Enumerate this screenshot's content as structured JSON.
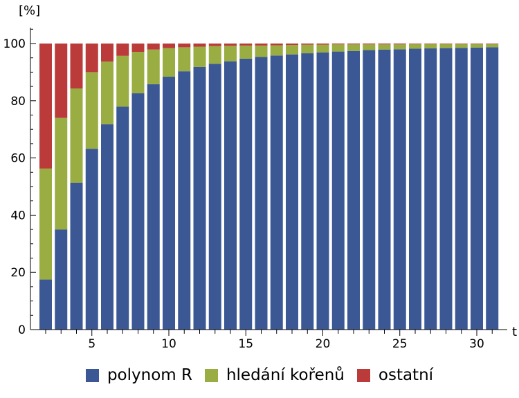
{
  "chart_data": {
    "type": "bar",
    "stacked": true,
    "ylabel": "[%]",
    "xlabel": "t",
    "ylim": [
      0,
      100
    ],
    "yticks": [
      0,
      20,
      40,
      60,
      80,
      100
    ],
    "xticks": [
      5,
      10,
      15,
      20,
      25,
      30
    ],
    "categories": [
      2,
      3,
      4,
      5,
      6,
      7,
      8,
      9,
      10,
      11,
      12,
      13,
      14,
      15,
      16,
      17,
      18,
      19,
      20,
      21,
      22,
      23,
      24,
      25,
      26,
      27,
      28,
      29,
      30,
      31
    ],
    "series": [
      {
        "name": "polynom R",
        "color": "#3b5895",
        "values": [
          17.5,
          35,
          51.3,
          63.2,
          71.8,
          77.9,
          82.6,
          85.8,
          88.4,
          90.3,
          91.8,
          92.9,
          93.8,
          94.7,
          95.3,
          95.8,
          96.2,
          96.6,
          96.9,
          97.2,
          97.4,
          97.7,
          97.9,
          98.0,
          98.2,
          98.3,
          98.4,
          98.5,
          98.6,
          98.7
        ]
      },
      {
        "name": "hledání kořenů",
        "color": "#9aad43",
        "values": [
          38.8,
          39.0,
          33.0,
          26.8,
          21.9,
          17.8,
          14.5,
          12.1,
          10.0,
          8.4,
          7.1,
          6.2,
          5.4,
          4.6,
          4.0,
          3.6,
          3.3,
          3.0,
          2.7,
          2.5,
          2.3,
          2.0,
          1.8,
          1.7,
          1.6,
          1.5,
          1.4,
          1.3,
          1.2,
          1.1
        ]
      },
      {
        "name": "ostatní",
        "color": "#bb3b3b",
        "values": [
          43.7,
          26.0,
          15.7,
          10.0,
          6.3,
          4.3,
          2.9,
          2.1,
          1.6,
          1.3,
          1.1,
          0.9,
          0.8,
          0.7,
          0.7,
          0.6,
          0.5,
          0.4,
          0.4,
          0.3,
          0.3,
          0.3,
          0.3,
          0.3,
          0.2,
          0.2,
          0.2,
          0.2,
          0.2,
          0.2
        ]
      }
    ],
    "legend_position": "bottom"
  }
}
